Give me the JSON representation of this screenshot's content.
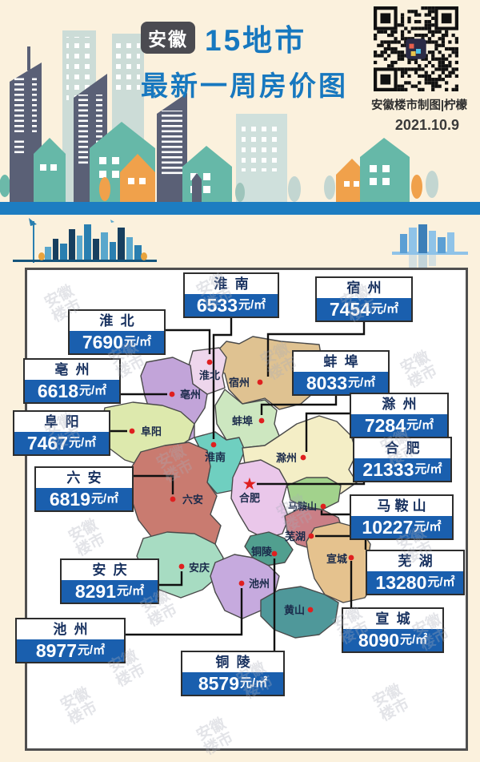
{
  "header": {
    "badge": "安徽",
    "title_line1": "15地市",
    "title_line2": "最新一周房价图",
    "credit": "安徽楼市制图|柠檬",
    "date": "2021.10.9",
    "title_color": "#1778bf"
  },
  "icons": {
    "capital_star": "★"
  },
  "watermark": {
    "line1": "安徽",
    "line2": "楼市"
  },
  "map": {
    "unit": "元/㎡",
    "marker_color": "#df1f1f",
    "cities": [
      {
        "name": "淮南",
        "price": "6533",
        "region_color": "#6fcfc0"
      },
      {
        "name": "宿州",
        "price": "7454",
        "region_color": "#dfc291"
      },
      {
        "name": "淮北",
        "price": "7690",
        "region_color": "#eed6ec"
      },
      {
        "name": "蚌埠",
        "price": "8033",
        "region_color": "#cde7c0"
      },
      {
        "name": "亳州",
        "price": "6618",
        "region_color": "#c2a4d9"
      },
      {
        "name": "滁州",
        "price": "7284",
        "region_color": "#f4eec6"
      },
      {
        "name": "阜阳",
        "price": "7467",
        "region_color": "#dde9ad"
      },
      {
        "name": "合肥",
        "price": "21333",
        "region_color": "#eac7ea"
      },
      {
        "name": "六安",
        "price": "6819",
        "region_color": "#c97b70"
      },
      {
        "name": "马鞍山",
        "price": "10227",
        "region_color": "#a2d28c"
      },
      {
        "name": "芜湖",
        "price": "13280",
        "region_color": "#ca7f86"
      },
      {
        "name": "安庆",
        "price": "8291",
        "region_color": "#a7dcc2"
      },
      {
        "name": "宣城",
        "price": "8090",
        "region_color": "#e5c28e"
      },
      {
        "name": "池州",
        "price": "8977",
        "region_color": "#c6aade"
      },
      {
        "name": "铜陵",
        "price": "8579",
        "region_color": "#519f8f"
      }
    ],
    "other_regions": [
      {
        "name": "黄山",
        "region_color": "#4f989a"
      }
    ]
  }
}
